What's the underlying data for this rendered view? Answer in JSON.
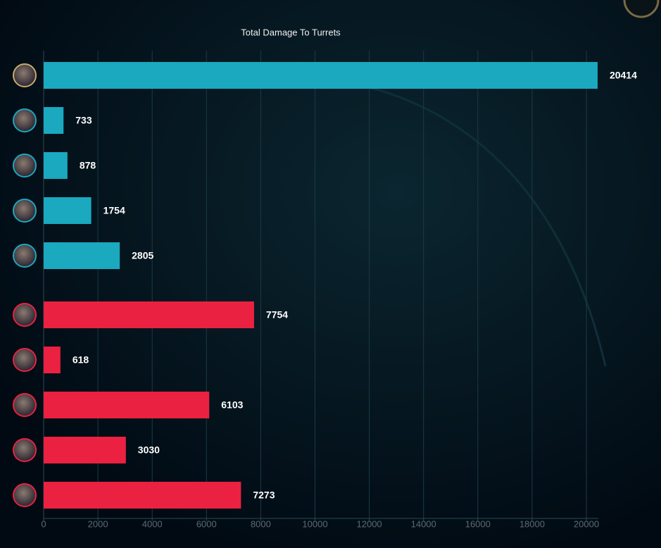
{
  "chart_data": {
    "type": "bar",
    "orientation": "horizontal",
    "title": "Total Damage To Turrets",
    "categories": [
      null,
      null,
      null,
      null,
      null,
      null,
      null,
      null,
      null,
      null
    ],
    "values": [
      20414,
      733,
      878,
      1754,
      2805,
      7754,
      618,
      6103,
      3030,
      7273
    ],
    "colors": [
      "#1aa9bf",
      "#1aa9bf",
      "#1aa9bf",
      "#1aa9bf",
      "#1aa9bf",
      "#eb2141",
      "#eb2141",
      "#eb2141",
      "#eb2141",
      "#eb2141"
    ],
    "xlim": [
      0,
      20450
    ],
    "xticks": [
      0,
      2000,
      4000,
      6000,
      8000,
      10000,
      12000,
      14000,
      16000,
      18000,
      20000
    ],
    "grid": true
  }
}
